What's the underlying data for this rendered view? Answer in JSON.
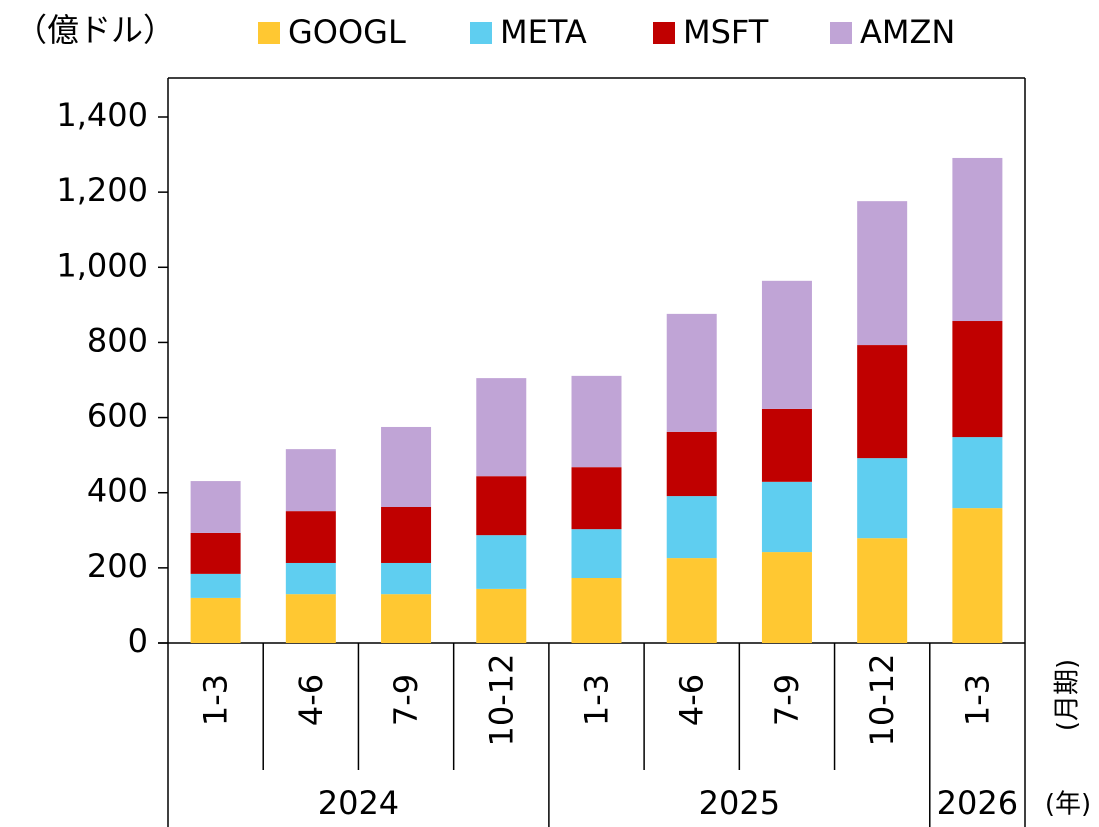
{
  "chart_data": {
    "type": "stacked_bar",
    "y_axis_title": "（億ドル）",
    "x_axis_title": "(月期)",
    "group_axis_title": "(年)",
    "categories": [
      "1-3",
      "4-6",
      "7-9",
      "10-12",
      "1-3",
      "4-6",
      "7-9",
      "10-12",
      "1-3"
    ],
    "groups": [
      {
        "name": "2024",
        "count": 4
      },
      {
        "name": "2025",
        "count": 4
      },
      {
        "name": "2026",
        "count": 1
      }
    ],
    "series": [
      {
        "name": "GOOGL",
        "color": "#ffc832",
        "values": [
          120,
          130,
          130,
          144,
          173,
          226,
          242,
          279,
          359
        ]
      },
      {
        "name": "META",
        "color": "#5fcef0",
        "values": [
          64,
          83,
          83,
          143,
          130,
          165,
          187,
          213,
          189
        ]
      },
      {
        "name": "MSFT",
        "color": "#c00000",
        "values": [
          109,
          138,
          149,
          157,
          165,
          171,
          194,
          301,
          309
        ]
      },
      {
        "name": "AMZN",
        "color": "#c0a4d6",
        "values": [
          138,
          165,
          213,
          261,
          243,
          314,
          341,
          383,
          434
        ]
      }
    ],
    "ylim": [
      0,
      1400
    ],
    "yticks": [
      0,
      200,
      400,
      600,
      800,
      {
        "value": 1000,
        "label": "1,000"
      },
      {
        "value": 1200,
        "label": "1,200"
      },
      {
        "value": 1400,
        "label": "1,400"
      }
    ],
    "legend": "top"
  }
}
